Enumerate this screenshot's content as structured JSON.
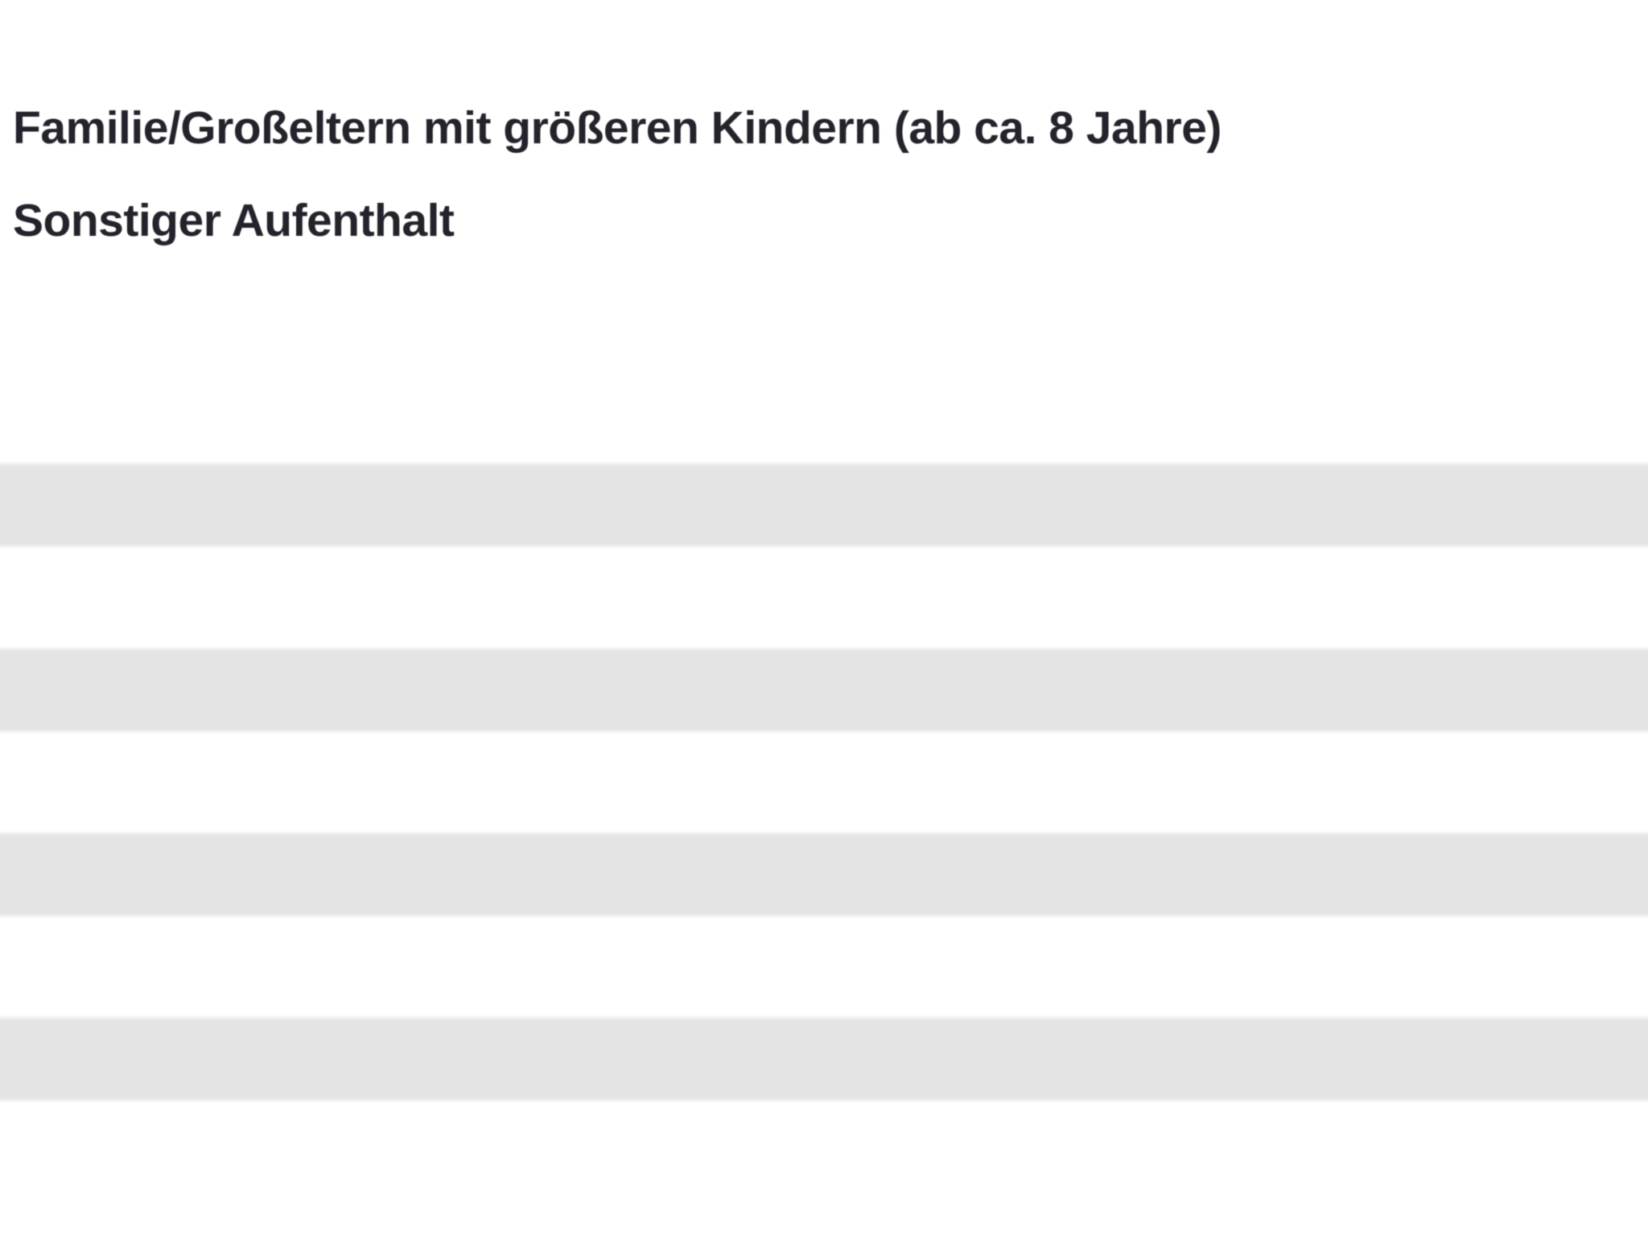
{
  "page": {
    "background_color": "#ffffff",
    "text_color": "#23232b",
    "stripe_color": "#e4e4e4"
  },
  "list": {
    "items": [
      {
        "label": "Familie/Großeltern mit größeren Kindern (ab ca. 8 Jahre)"
      },
      {
        "label": "Sonstiger Aufenthalt"
      }
    ]
  },
  "skeleton": {
    "row_count": 4
  }
}
